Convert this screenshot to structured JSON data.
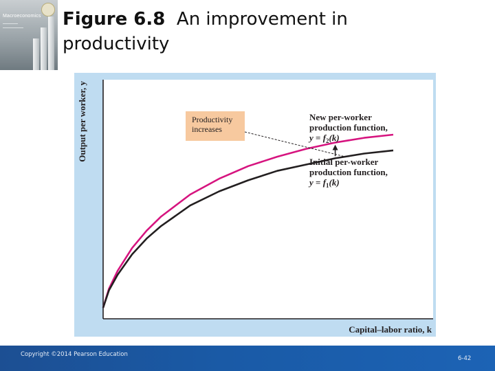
{
  "header": {
    "figure_number": "Figure 6.8",
    "title_line1": "An improvement in",
    "title_line2": "productivity"
  },
  "book_cover": {
    "title": "Macroeconomics"
  },
  "chart_data": {
    "type": "line",
    "xlabel": "Capital–labor ratio, k",
    "ylabel": "Output per worker, y",
    "grid": false,
    "x_ticks": [],
    "y_ticks": [],
    "series": [
      {
        "name": "Initial per-worker production function, y = f1(k)",
        "label_lines": [
          "Initial per-worker",
          "production function,"
        ],
        "equation": {
          "y": "y",
          "f": "f",
          "sub": "1",
          "arg": "(k)"
        },
        "color": "#231f20",
        "x": [
          0,
          0.02,
          0.05,
          0.1,
          0.15,
          0.2,
          0.3,
          0.4,
          0.5,
          0.6,
          0.7,
          0.8,
          0.9,
          1.0
        ],
        "y": [
          0,
          0.11,
          0.21,
          0.34,
          0.44,
          0.52,
          0.65,
          0.74,
          0.81,
          0.87,
          0.91,
          0.95,
          0.98,
          1.0
        ]
      },
      {
        "name": "New per-worker production function, y = f2(k)",
        "label_lines": [
          "New per-worker",
          "production function,"
        ],
        "equation": {
          "y": "y",
          "f": "f",
          "sub": "2",
          "arg": "(k)"
        },
        "color": "#d6147f",
        "x": [
          0,
          0.02,
          0.05,
          0.1,
          0.15,
          0.2,
          0.3,
          0.4,
          0.5,
          0.6,
          0.7,
          0.8,
          0.9,
          1.0
        ],
        "y": [
          0,
          0.12,
          0.235,
          0.38,
          0.49,
          0.58,
          0.72,
          0.82,
          0.9,
          0.96,
          1.01,
          1.05,
          1.08,
          1.1
        ]
      }
    ],
    "annotation": {
      "lines": [
        "Productivity",
        "increases"
      ],
      "bg_color": "#f7c99f",
      "arrow_at_x": 0.8
    }
  }
}
